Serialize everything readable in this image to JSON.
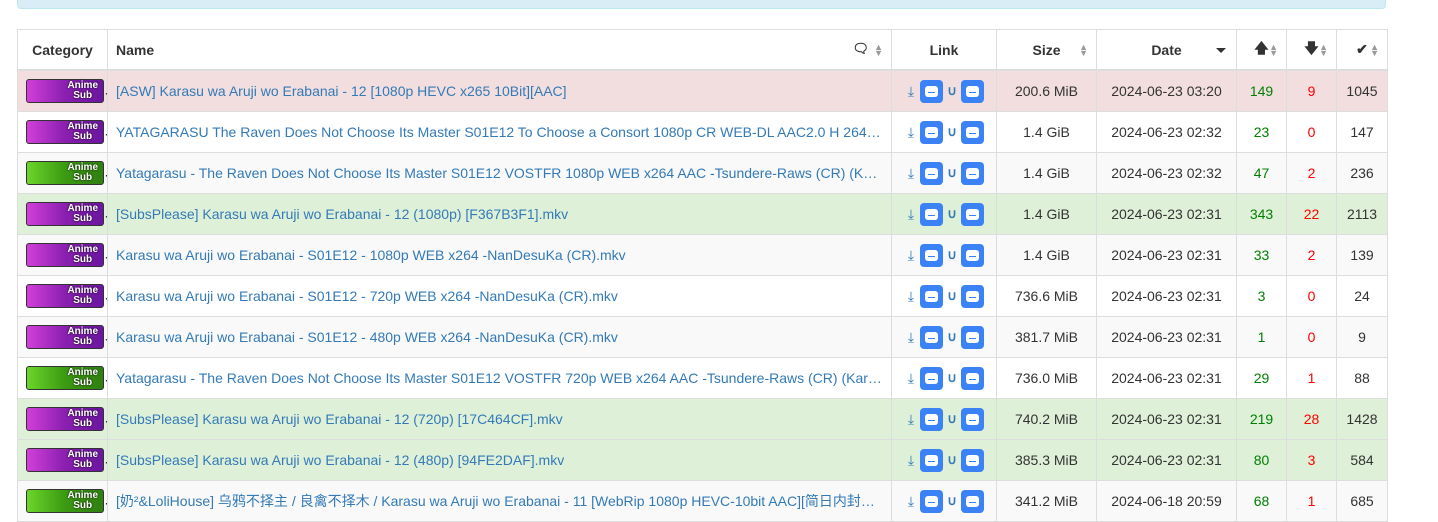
{
  "headers": {
    "category": "Category",
    "name": "Name",
    "link": "Link",
    "size": "Size",
    "date": "Date",
    "seeders_icon": "arrow-up-icon",
    "leechers_icon": "arrow-down-icon",
    "completed_icon": "check-icon",
    "comments_icon": "comments-icon"
  },
  "colors": {
    "link": "#337ab7",
    "seeders": "#008000",
    "leechers": "#ff0000",
    "danger_row": "#f2dede",
    "success_row": "#dff0d8"
  },
  "rows": [
    {
      "cat": "purple",
      "cat_label": "Anime Sub",
      "status": "danger",
      "name": "[ASW] Karasu wa Aruji wo Erabanai - 12 [1080p HEVC x265 10Bit][AAC]",
      "size": "200.6 MiB",
      "date": "2024-06-23 03:20",
      "seeders": "149",
      "leechers": "9",
      "completed": "1045"
    },
    {
      "cat": "purple",
      "cat_label": "Anime Sub",
      "status": "default",
      "name": "YATAGARASU The Raven Does Not Choose Its Master S01E12 To Choose a Consort 1080p CR WEB-DL AAC2.0 H 264…",
      "size": "1.4 GiB",
      "date": "2024-06-23 02:32",
      "seeders": "23",
      "leechers": "0",
      "completed": "147"
    },
    {
      "cat": "green",
      "cat_label": "Anime Sub",
      "status": "default",
      "name": "Yatagarasu - The Raven Does Not Choose Its Master S01E12 VOSTFR 1080p WEB x264 AAC -Tsundere-Raws (CR) (K…",
      "size": "1.4 GiB",
      "date": "2024-06-23 02:32",
      "seeders": "47",
      "leechers": "2",
      "completed": "236"
    },
    {
      "cat": "purple",
      "cat_label": "Anime Sub",
      "status": "success",
      "name": "[SubsPlease] Karasu wa Aruji wo Erabanai - 12 (1080p) [F367B3F1].mkv",
      "size": "1.4 GiB",
      "date": "2024-06-23 02:31",
      "seeders": "343",
      "leechers": "22",
      "completed": "2113"
    },
    {
      "cat": "purple",
      "cat_label": "Anime Sub",
      "status": "default",
      "name": "Karasu wa Aruji wo Erabanai - S01E12 - 1080p WEB x264 -NanDesuKa (CR).mkv",
      "size": "1.4 GiB",
      "date": "2024-06-23 02:31",
      "seeders": "33",
      "leechers": "2",
      "completed": "139"
    },
    {
      "cat": "purple",
      "cat_label": "Anime Sub",
      "status": "default",
      "name": "Karasu wa Aruji wo Erabanai - S01E12 - 720p WEB x264 -NanDesuKa (CR).mkv",
      "size": "736.6 MiB",
      "date": "2024-06-23 02:31",
      "seeders": "3",
      "leechers": "0",
      "completed": "24"
    },
    {
      "cat": "purple",
      "cat_label": "Anime Sub",
      "status": "default",
      "name": "Karasu wa Aruji wo Erabanai - S01E12 - 480p WEB x264 -NanDesuKa (CR).mkv",
      "size": "381.7 MiB",
      "date": "2024-06-23 02:31",
      "seeders": "1",
      "leechers": "0",
      "completed": "9"
    },
    {
      "cat": "green",
      "cat_label": "Anime Sub",
      "status": "default",
      "name": "Yatagarasu - The Raven Does Not Choose Its Master S01E12 VOSTFR 720p WEB x264 AAC -Tsundere-Raws (CR) (Kar…",
      "size": "736.0 MiB",
      "date": "2024-06-23 02:31",
      "seeders": "29",
      "leechers": "1",
      "completed": "88"
    },
    {
      "cat": "purple",
      "cat_label": "Anime Sub",
      "status": "success",
      "name": "[SubsPlease] Karasu wa Aruji wo Erabanai - 12 (720p) [17C464CF].mkv",
      "size": "740.2 MiB",
      "date": "2024-06-23 02:31",
      "seeders": "219",
      "leechers": "28",
      "completed": "1428"
    },
    {
      "cat": "purple",
      "cat_label": "Anime Sub",
      "status": "success",
      "name": "[SubsPlease] Karasu wa Aruji wo Erabanai - 12 (480p) [94FE2DAF].mkv",
      "size": "385.3 MiB",
      "date": "2024-06-23 02:31",
      "seeders": "80",
      "leechers": "3",
      "completed": "584"
    },
    {
      "cat": "green",
      "cat_label": "Anime Sub",
      "status": "default",
      "name": "[奶²&LoliHouse] 乌鸦不择主 / 良禽不择木 / Karasu wa Aruji wo Erabanai - 11 [WebRip 1080p HEVC-10bit AAC][简日内封…",
      "size": "341.2 MiB",
      "date": "2024-06-18 20:59",
      "seeders": "68",
      "leechers": "1",
      "completed": "685"
    }
  ]
}
